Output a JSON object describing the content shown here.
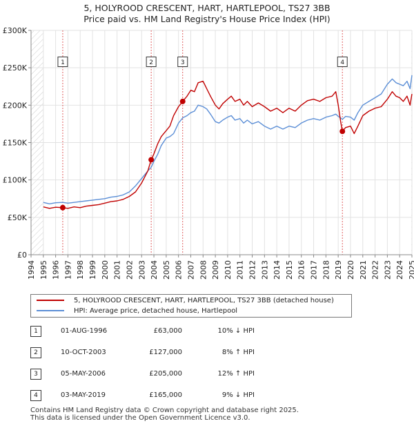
{
  "chart_data": {
    "type": "line",
    "title": "5, HOLYROOD CRESCENT, HART, HARTLEPOOL, TS27 3BB",
    "subtitle": "Price paid vs. HM Land Registry's House Price Index (HPI)",
    "xlim": [
      1994,
      2025
    ],
    "ylim": [
      0,
      300000
    ],
    "x_ticks": [
      "1994",
      "1995",
      "1996",
      "1997",
      "1998",
      "1999",
      "2000",
      "2001",
      "2002",
      "2003",
      "2004",
      "2005",
      "2006",
      "2007",
      "2008",
      "2009",
      "2010",
      "2011",
      "2012",
      "2013",
      "2014",
      "2015",
      "2016",
      "2017",
      "2018",
      "2019",
      "2020",
      "2021",
      "2022",
      "2023",
      "2024",
      "2025"
    ],
    "y_ticks": [
      {
        "value": 0,
        "label": "£0"
      },
      {
        "value": 50000,
        "label": "£50K"
      },
      {
        "value": 100000,
        "label": "£100K"
      },
      {
        "value": 150000,
        "label": "£150K"
      },
      {
        "value": 200000,
        "label": "£200K"
      },
      {
        "value": 250000,
        "label": "£250K"
      },
      {
        "value": 300000,
        "label": "£300K"
      }
    ],
    "grid": true,
    "series": [
      {
        "name": "5, HOLYROOD CRESCENT, HART, HARTLEPOOL, TS27 3BB (detached house)",
        "color": "#c00000",
        "points": [
          [
            1995.0,
            64000
          ],
          [
            1995.5,
            62000
          ],
          [
            1996.0,
            63500
          ],
          [
            1996.58,
            63000
          ],
          [
            1997.0,
            62000
          ],
          [
            1997.5,
            64000
          ],
          [
            1998.0,
            63000
          ],
          [
            1998.5,
            65000
          ],
          [
            1999.0,
            66000
          ],
          [
            1999.5,
            67000
          ],
          [
            2000.0,
            69000
          ],
          [
            2000.5,
            71000
          ],
          [
            2001.0,
            72000
          ],
          [
            2001.5,
            74000
          ],
          [
            2002.0,
            78000
          ],
          [
            2002.5,
            84000
          ],
          [
            2003.0,
            96000
          ],
          [
            2003.5,
            112000
          ],
          [
            2003.78,
            127000
          ],
          [
            2004.0,
            135000
          ],
          [
            2004.3,
            148000
          ],
          [
            2004.6,
            158000
          ],
          [
            2005.0,
            166000
          ],
          [
            2005.3,
            172000
          ],
          [
            2005.6,
            186000
          ],
          [
            2006.0,
            198000
          ],
          [
            2006.34,
            205000
          ],
          [
            2006.7,
            212000
          ],
          [
            2007.0,
            220000
          ],
          [
            2007.3,
            218000
          ],
          [
            2007.6,
            230000
          ],
          [
            2008.0,
            232000
          ],
          [
            2008.3,
            222000
          ],
          [
            2008.6,
            212000
          ],
          [
            2009.0,
            200000
          ],
          [
            2009.3,
            195000
          ],
          [
            2009.6,
            202000
          ],
          [
            2010.0,
            208000
          ],
          [
            2010.3,
            212000
          ],
          [
            2010.6,
            205000
          ],
          [
            2011.0,
            208000
          ],
          [
            2011.3,
            200000
          ],
          [
            2011.6,
            205000
          ],
          [
            2012.0,
            198000
          ],
          [
            2012.5,
            203000
          ],
          [
            2013.0,
            198000
          ],
          [
            2013.5,
            192000
          ],
          [
            2014.0,
            196000
          ],
          [
            2014.5,
            190000
          ],
          [
            2015.0,
            196000
          ],
          [
            2015.5,
            192000
          ],
          [
            2016.0,
            200000
          ],
          [
            2016.5,
            206000
          ],
          [
            2017.0,
            208000
          ],
          [
            2017.5,
            205000
          ],
          [
            2018.0,
            210000
          ],
          [
            2018.5,
            212000
          ],
          [
            2018.8,
            218000
          ],
          [
            2019.0,
            200000
          ],
          [
            2019.2,
            178000
          ],
          [
            2019.34,
            165000
          ],
          [
            2019.6,
            170000
          ],
          [
            2020.0,
            172000
          ],
          [
            2020.3,
            162000
          ],
          [
            2020.6,
            172000
          ],
          [
            2021.0,
            186000
          ],
          [
            2021.5,
            192000
          ],
          [
            2022.0,
            196000
          ],
          [
            2022.5,
            198000
          ],
          [
            2023.0,
            208000
          ],
          [
            2023.4,
            218000
          ],
          [
            2023.7,
            212000
          ],
          [
            2024.0,
            210000
          ],
          [
            2024.3,
            205000
          ],
          [
            2024.6,
            212000
          ],
          [
            2024.85,
            200000
          ],
          [
            2025.0,
            215000
          ]
        ]
      },
      {
        "name": "HPI: Average price, detached house, Hartlepool",
        "color": "#5b8ed6",
        "points": [
          [
            1995.0,
            70000
          ],
          [
            1995.5,
            68000
          ],
          [
            1996.0,
            69500
          ],
          [
            1996.58,
            70000
          ],
          [
            1997.0,
            69000
          ],
          [
            1997.5,
            70000
          ],
          [
            1998.0,
            71000
          ],
          [
            1998.5,
            72000
          ],
          [
            1999.0,
            73000
          ],
          [
            1999.5,
            74000
          ],
          [
            2000.0,
            75000
          ],
          [
            2000.5,
            77000
          ],
          [
            2001.0,
            78000
          ],
          [
            2001.5,
            80000
          ],
          [
            2002.0,
            84000
          ],
          [
            2002.5,
            92000
          ],
          [
            2003.0,
            102000
          ],
          [
            2003.5,
            112000
          ],
          [
            2003.78,
            117000
          ],
          [
            2004.0,
            125000
          ],
          [
            2004.3,
            134000
          ],
          [
            2004.6,
            146000
          ],
          [
            2005.0,
            156000
          ],
          [
            2005.3,
            158000
          ],
          [
            2005.6,
            162000
          ],
          [
            2006.0,
            176000
          ],
          [
            2006.34,
            183000
          ],
          [
            2006.7,
            186000
          ],
          [
            2007.0,
            190000
          ],
          [
            2007.3,
            192000
          ],
          [
            2007.6,
            200000
          ],
          [
            2008.0,
            198000
          ],
          [
            2008.3,
            195000
          ],
          [
            2008.6,
            188000
          ],
          [
            2009.0,
            178000
          ],
          [
            2009.3,
            176000
          ],
          [
            2009.6,
            180000
          ],
          [
            2010.0,
            184000
          ],
          [
            2010.3,
            186000
          ],
          [
            2010.6,
            180000
          ],
          [
            2011.0,
            182000
          ],
          [
            2011.3,
            176000
          ],
          [
            2011.6,
            180000
          ],
          [
            2012.0,
            175000
          ],
          [
            2012.5,
            178000
          ],
          [
            2013.0,
            172000
          ],
          [
            2013.5,
            168000
          ],
          [
            2014.0,
            172000
          ],
          [
            2014.5,
            168000
          ],
          [
            2015.0,
            172000
          ],
          [
            2015.5,
            170000
          ],
          [
            2016.0,
            176000
          ],
          [
            2016.5,
            180000
          ],
          [
            2017.0,
            182000
          ],
          [
            2017.5,
            180000
          ],
          [
            2018.0,
            184000
          ],
          [
            2018.5,
            186000
          ],
          [
            2018.8,
            188000
          ],
          [
            2019.0,
            185000
          ],
          [
            2019.2,
            183000
          ],
          [
            2019.34,
            181000
          ],
          [
            2019.6,
            185000
          ],
          [
            2020.0,
            184000
          ],
          [
            2020.3,
            180000
          ],
          [
            2020.6,
            190000
          ],
          [
            2021.0,
            200000
          ],
          [
            2021.5,
            205000
          ],
          [
            2022.0,
            210000
          ],
          [
            2022.5,
            215000
          ],
          [
            2023.0,
            228000
          ],
          [
            2023.4,
            235000
          ],
          [
            2023.7,
            230000
          ],
          [
            2024.0,
            228000
          ],
          [
            2024.3,
            226000
          ],
          [
            2024.6,
            232000
          ],
          [
            2024.85,
            222000
          ],
          [
            2025.0,
            240000
          ]
        ]
      }
    ],
    "transactions": [
      {
        "label": "1",
        "date": "01-AUG-1996",
        "x": 1996.58,
        "price_value": 63000,
        "price": "£63,000",
        "hpi": "10% ↓ HPI"
      },
      {
        "label": "2",
        "date": "10-OCT-2003",
        "x": 2003.78,
        "price_value": 127000,
        "price": "£127,000",
        "hpi": "8% ↑ HPI"
      },
      {
        "label": "3",
        "date": "05-MAY-2006",
        "x": 2006.34,
        "price_value": 205000,
        "price": "£205,000",
        "hpi": "12% ↑ HPI"
      },
      {
        "label": "4",
        "date": "03-MAY-2019",
        "x": 2019.34,
        "price_value": 165000,
        "price": "£165,000",
        "hpi": "9% ↓ HPI"
      }
    ]
  },
  "legend": {
    "property_label": "5, HOLYROOD CRESCENT, HART, HARTLEPOOL, TS27 3BB (detached house)",
    "hpi_label": "HPI: Average price, detached house, Hartlepool",
    "property_color": "#c00000",
    "hpi_color": "#5b8ed6"
  },
  "footer": {
    "line1": "Contains HM Land Registry data © Crown copyright and database right 2025.",
    "line2": "This data is licensed under the Open Government Licence v3.0."
  }
}
